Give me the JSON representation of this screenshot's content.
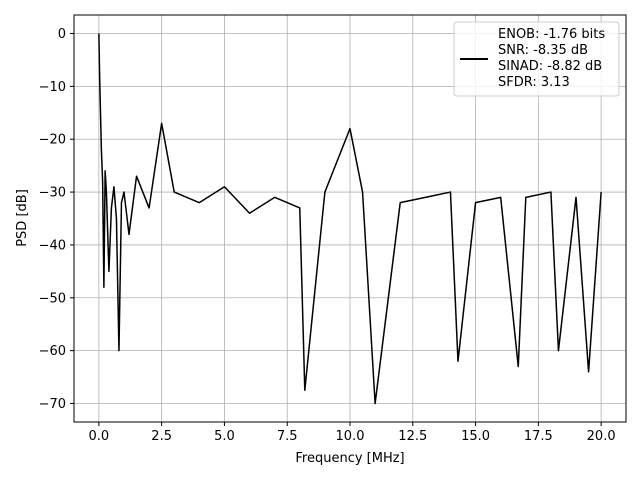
{
  "chart_data": {
    "type": "line",
    "title": "",
    "xlabel": "Frequency [MHz]",
    "ylabel": "PSD [dB]",
    "xlim": [
      -0.99,
      20.99
    ],
    "ylim": [
      -73.5,
      3.5
    ],
    "x_ticks": [
      0,
      2.5,
      5,
      7.5,
      10,
      12.5,
      15,
      17.5,
      20
    ],
    "x_tick_labels": [
      "0.0",
      "2.5",
      "5.0",
      "7.5",
      "10.0",
      "12.5",
      "15.0",
      "17.5",
      "20.0"
    ],
    "y_ticks": [
      0,
      -10,
      -20,
      -30,
      -40,
      -50,
      -60,
      -70
    ],
    "y_tick_labels": [
      "0",
      "−10",
      "−20",
      "−30",
      "−40",
      "−50",
      "−60",
      "−70"
    ],
    "grid": true,
    "legend_position": "top-right",
    "series_color": "#000000",
    "series": [
      {
        "name": "ENOB: -1.76 bits\nSNR: -8.35 dB\nSINAD: -8.82 dB\nSFDR: 3.13",
        "x": [
          0,
          0.03,
          0.06,
          0.1,
          0.15,
          0.2,
          0.25,
          0.3,
          0.4,
          0.5,
          0.6,
          0.7,
          0.8,
          0.9,
          1.0,
          1.2,
          1.5,
          2.0,
          2.5,
          3.0,
          4.0,
          5.0,
          6.0,
          7.0,
          8.0,
          8.2,
          9.0,
          10.0,
          10.5,
          11.0,
          12.0,
          13.0,
          14.0,
          14.3,
          15.0,
          16.0,
          16.7,
          17.0,
          18.0,
          18.3,
          19.0,
          19.5,
          20.0
        ],
        "y": [
          0,
          -8,
          -14,
          -22,
          -28,
          -48,
          -26,
          -30,
          -45,
          -33,
          -29,
          -35,
          -60,
          -32,
          -30,
          -38,
          -27,
          -33,
          -17,
          -30,
          -32,
          -29,
          -34,
          -31,
          -33,
          -67.5,
          -30,
          -18,
          -30,
          -70,
          -32,
          -31,
          -30,
          -62,
          -32,
          -31,
          -63,
          -31,
          -30,
          -60,
          -31,
          -64,
          -30
        ]
      }
    ],
    "annotations": []
  }
}
